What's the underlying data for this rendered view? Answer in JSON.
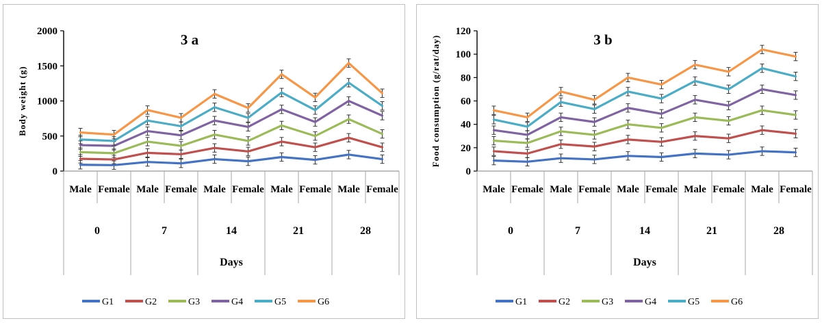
{
  "colors": {
    "G1": "#4472c4",
    "G2": "#c0504d",
    "G3": "#9bbb59",
    "G4": "#8064a2",
    "G5": "#4bacc6",
    "G6": "#f79646"
  },
  "chart_data": [
    {
      "type": "line",
      "title": "3 a",
      "xlabel": "Days",
      "ylabel": "Body weight (g)",
      "ylim": [
        0,
        2000
      ],
      "yticks": [
        0,
        500,
        1000,
        1500,
        2000
      ],
      "grid": false,
      "legend_position": "bottom",
      "days": [
        "0",
        "7",
        "14",
        "21",
        "28"
      ],
      "categories": [
        "Male",
        "Female",
        "Male",
        "Female",
        "Male",
        "Female",
        "Male",
        "Female",
        "Male",
        "Female"
      ],
      "series": [
        {
          "name": "G1",
          "values": [
            90,
            85,
            130,
            110,
            170,
            140,
            200,
            160,
            235,
            170
          ]
        },
        {
          "name": "G2",
          "values": [
            175,
            165,
            260,
            240,
            330,
            280,
            420,
            340,
            475,
            340
          ]
        },
        {
          "name": "G3",
          "values": [
            270,
            255,
            420,
            360,
            520,
            430,
            650,
            500,
            740,
            530
          ]
        },
        {
          "name": "G4",
          "values": [
            370,
            360,
            570,
            510,
            720,
            630,
            880,
            700,
            1000,
            790
          ]
        },
        {
          "name": "G5",
          "values": [
            450,
            430,
            720,
            640,
            910,
            760,
            1120,
            870,
            1260,
            930
          ]
        },
        {
          "name": "G6",
          "values": [
            550,
            520,
            870,
            760,
            1100,
            900,
            1380,
            1050,
            1540,
            1110
          ]
        }
      ]
    },
    {
      "type": "line",
      "title": "3 b",
      "xlabel": "Days",
      "ylabel": "Food consumption (g/rat/day)",
      "ylim": [
        0,
        120
      ],
      "yticks": [
        0,
        20,
        40,
        60,
        80,
        100,
        120
      ],
      "grid": false,
      "legend_position": "bottom",
      "days": [
        "0",
        "7",
        "14",
        "21",
        "28"
      ],
      "categories": [
        "Male",
        "Female",
        "Male",
        "Female",
        "Male",
        "Female",
        "Male",
        "Female",
        "Male",
        "Female"
      ],
      "series": [
        {
          "name": "G1",
          "values": [
            9,
            8,
            11,
            10,
            13,
            12,
            15,
            14,
            17,
            16
          ]
        },
        {
          "name": "G2",
          "values": [
            17,
            15,
            23,
            21,
            27,
            25,
            30,
            28,
            35,
            32
          ]
        },
        {
          "name": "G3",
          "values": [
            26,
            24,
            34,
            31,
            40,
            37,
            46,
            43,
            52,
            48
          ]
        },
        {
          "name": "G4",
          "values": [
            35,
            31,
            46,
            42,
            54,
            49,
            61,
            56,
            70,
            65
          ]
        },
        {
          "name": "G5",
          "values": [
            44,
            38,
            59,
            53,
            68,
            62,
            77,
            70,
            88,
            81
          ]
        },
        {
          "name": "G6",
          "values": [
            52,
            46,
            68,
            61,
            80,
            74,
            91,
            85,
            104,
            98
          ]
        }
      ]
    }
  ]
}
